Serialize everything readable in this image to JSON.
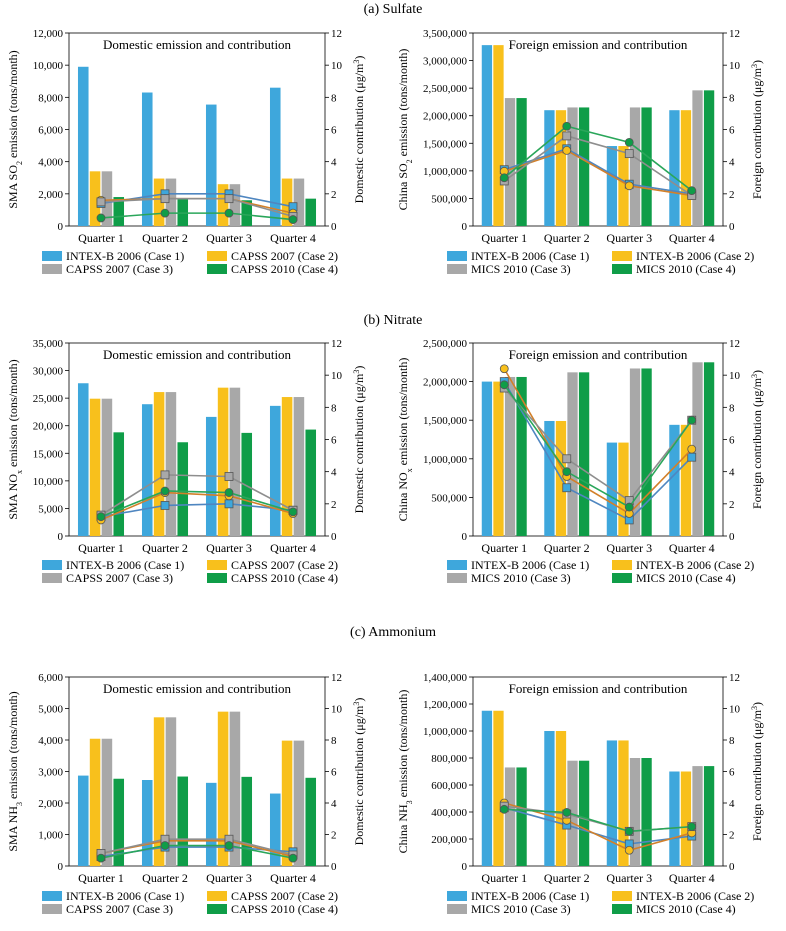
{
  "colors": {
    "case1": "#3ea7dc",
    "case2": "#f8c01c",
    "case3": "#a8a8a8",
    "case4": "#0f9d48"
  },
  "chart_data": [
    {
      "type": "bar+line",
      "section_title": "(a) Sulfate",
      "title": "Domestic emission and contribution",
      "ylabel": "SMA SO₂ emission (tons/month)",
      "y2label": "Domestic contribution (μg/m³)",
      "ylim": [
        0,
        12000
      ],
      "y2lim": [
        0,
        12
      ],
      "ytick_labels": [
        "0",
        "2,000",
        "4,000",
        "6,000",
        "8,000",
        "10,000",
        "12,000"
      ],
      "y2tick_labels": [
        "0",
        "2",
        "4",
        "6",
        "8",
        "10",
        "12"
      ],
      "categories": [
        "Quarter 1",
        "Quarter 2",
        "Quarter 3",
        "Quarter 4"
      ],
      "series": [
        {
          "name": "INTEX-B 2006 (Case 1)",
          "values": [
            9900,
            8300,
            7550,
            8600
          ],
          "contribution": [
            1.4,
            2.0,
            2.0,
            1.2
          ]
        },
        {
          "name": "CAPSS 2007 (Case 2)",
          "values": [
            3400,
            2950,
            2600,
            2950
          ],
          "contribution": [
            1.6,
            1.7,
            1.7,
            0.8
          ]
        },
        {
          "name": "CAPSS 2007 (Case 3)",
          "values": [
            3400,
            2950,
            2600,
            2950
          ],
          "contribution": [
            1.5,
            1.7,
            1.7,
            0.6
          ]
        },
        {
          "name": "CAPSS 2010 (Case 4)",
          "values": [
            1800,
            1650,
            1600,
            1700
          ],
          "contribution": [
            0.5,
            0.8,
            0.8,
            0.4
          ]
        }
      ]
    },
    {
      "type": "bar+line",
      "section_title": "",
      "title": "Foreign emission and contribution",
      "ylabel": "China SO₂ emission (tons/month)",
      "y2label": "Foreign contribution (μg/m³)",
      "ylim": [
        0,
        3500000
      ],
      "y2lim": [
        0,
        12
      ],
      "ytick_labels": [
        "0",
        "500,000",
        "1,000,000",
        "1,500,000",
        "2,000,000",
        "2,500,000",
        "3,000,000",
        "3,500,000"
      ],
      "y2tick_labels": [
        "0",
        "2",
        "4",
        "6",
        "8",
        "10",
        "12"
      ],
      "categories": [
        "Quarter 1",
        "Quarter 2",
        "Quarter 3",
        "Quarter 4"
      ],
      "series": [
        {
          "name": "INTEX-B 2006 (Case 1)",
          "values": [
            3280000,
            2100000,
            1450000,
            2100000
          ],
          "contribution": [
            3.5,
            4.8,
            2.6,
            2.0
          ]
        },
        {
          "name": "INTEX-B 2006 (Case 2)",
          "values": [
            3280000,
            2100000,
            1450000,
            2100000
          ],
          "contribution": [
            3.4,
            4.7,
            2.5,
            1.9
          ]
        },
        {
          "name": "MICS 2010 (Case 3)",
          "values": [
            2320000,
            2150000,
            2150000,
            2460000
          ],
          "contribution": [
            2.8,
            5.6,
            4.5,
            1.9
          ]
        },
        {
          "name": "MICS 2010 (Case 4)",
          "values": [
            2320000,
            2150000,
            2150000,
            2460000
          ],
          "contribution": [
            3.0,
            6.2,
            5.2,
            2.2
          ]
        }
      ]
    },
    {
      "type": "bar+line",
      "section_title": "(b) Nitrate",
      "title": "Domestic emission and contribution",
      "ylabel": "SMA NOₓ emission (tons/month)",
      "y2label": "Domestic contribution (μg/m³)",
      "ylim": [
        0,
        35000
      ],
      "y2lim": [
        0,
        12
      ],
      "ytick_labels": [
        "0",
        "5,000",
        "10,000",
        "15,000",
        "20,000",
        "25,000",
        "30,000",
        "35,000"
      ],
      "y2tick_labels": [
        "0",
        "2",
        "4",
        "6",
        "8",
        "10",
        "12"
      ],
      "categories": [
        "Quarter 1",
        "Quarter 2",
        "Quarter 3",
        "Quarter 4"
      ],
      "series": [
        {
          "name": "INTEX-B 2006 (Case 1)",
          "values": [
            27700,
            23900,
            21600,
            23600
          ],
          "contribution": [
            1.2,
            1.9,
            2.0,
            1.6
          ]
        },
        {
          "name": "CAPSS 2007 (Case 2)",
          "values": [
            24900,
            26100,
            26900,
            25200
          ],
          "contribution": [
            1.0,
            2.7,
            2.5,
            1.4
          ]
        },
        {
          "name": "CAPSS 2007 (Case 3)",
          "values": [
            24900,
            26100,
            26900,
            25200
          ],
          "contribution": [
            1.3,
            3.8,
            3.7,
            1.6
          ]
        },
        {
          "name": "CAPSS 2010 (Case 4)",
          "values": [
            18800,
            17000,
            18700,
            19300
          ],
          "contribution": [
            1.2,
            2.8,
            2.7,
            1.5
          ]
        }
      ]
    },
    {
      "type": "bar+line",
      "section_title": "",
      "title": "Foreign emission and contribution",
      "ylabel": "China NOₓ emission (tons/month)",
      "y2label": "Foreign contribution (μg/m³)",
      "ylim": [
        0,
        2500000
      ],
      "y2lim": [
        0,
        12
      ],
      "ytick_labels": [
        "0",
        "500,000",
        "1,000,000",
        "1,500,000",
        "2,000,000",
        "2,500,000"
      ],
      "y2tick_labels": [
        "0",
        "2",
        "4",
        "6",
        "8",
        "10",
        "12"
      ],
      "categories": [
        "Quarter 1",
        "Quarter 2",
        "Quarter 3",
        "Quarter 4"
      ],
      "series": [
        {
          "name": "INTEX-B 2006 (Case 1)",
          "values": [
            2000000,
            1490000,
            1210000,
            1440000
          ],
          "contribution": [
            9.6,
            3.0,
            1.0,
            4.9
          ]
        },
        {
          "name": "INTEX-B 2006 (Case 2)",
          "values": [
            2000000,
            1490000,
            1210000,
            1440000
          ],
          "contribution": [
            10.4,
            3.7,
            1.4,
            5.4
          ]
        },
        {
          "name": "MICS 2010 (Case 3)",
          "values": [
            2060000,
            2120000,
            2170000,
            2250000
          ],
          "contribution": [
            9.2,
            4.8,
            2.2,
            7.2
          ]
        },
        {
          "name": "MICS 2010 (Case 4)",
          "values": [
            2060000,
            2120000,
            2170000,
            2250000
          ],
          "contribution": [
            9.4,
            4.0,
            1.8,
            7.2
          ]
        }
      ]
    },
    {
      "type": "bar+line",
      "section_title": "(c) Ammonium",
      "title": "Domestic emission and contribution",
      "ylabel": "SMA NH₃ emission (tons/month)",
      "y2label": "Domestic contribution (μg/m³)",
      "ylim": [
        0,
        6000
      ],
      "y2lim": [
        0,
        12
      ],
      "ytick_labels": [
        "0",
        "1,000",
        "2,000",
        "3,000",
        "4,000",
        "5,000",
        "6,000"
      ],
      "y2tick_labels": [
        "0",
        "2",
        "4",
        "6",
        "8",
        "10",
        "12"
      ],
      "categories": [
        "Quarter 1",
        "Quarter 2",
        "Quarter 3",
        "Quarter 4"
      ],
      "series": [
        {
          "name": "INTEX-B 2006 (Case 1)",
          "values": [
            2870,
            2730,
            2640,
            2300
          ],
          "contribution": [
            0.6,
            1.2,
            1.2,
            0.9
          ]
        },
        {
          "name": "CAPSS 2007 (Case 2)",
          "values": [
            4040,
            4720,
            4900,
            3980
          ],
          "contribution": [
            0.8,
            1.6,
            1.6,
            0.6
          ]
        },
        {
          "name": "CAPSS 2007 (Case 3)",
          "values": [
            4040,
            4720,
            4900,
            3980
          ],
          "contribution": [
            0.8,
            1.7,
            1.7,
            0.7
          ]
        },
        {
          "name": "CAPSS 2010 (Case 4)",
          "values": [
            2770,
            2840,
            2830,
            2800
          ],
          "contribution": [
            0.5,
            1.3,
            1.3,
            0.5
          ]
        }
      ]
    },
    {
      "type": "bar+line",
      "section_title": "",
      "title": "Foreign emission and contribution",
      "ylabel": "China NH₃ emission (tons/month)",
      "y2label": "Foreign contribution (μg/m³)",
      "ylim": [
        0,
        1400000
      ],
      "y2lim": [
        0,
        12
      ],
      "ytick_labels": [
        "0",
        "200,000",
        "400,000",
        "600,000",
        "800,000",
        "1,000,000",
        "1,200,000",
        "1,400,000"
      ],
      "y2tick_labels": [
        "0",
        "2",
        "4",
        "6",
        "8",
        "10",
        "12"
      ],
      "categories": [
        "Quarter 1",
        "Quarter 2",
        "Quarter 3",
        "Quarter 4"
      ],
      "series": [
        {
          "name": "INTEX-B 2006 (Case 1)",
          "values": [
            1150000,
            1000000,
            930000,
            700000
          ],
          "contribution": [
            3.7,
            2.6,
            1.4,
            1.9
          ]
        },
        {
          "name": "INTEX-B 2006 (Case 2)",
          "values": [
            1150000,
            1000000,
            930000,
            700000
          ],
          "contribution": [
            4.0,
            2.9,
            1.0,
            2.1
          ]
        },
        {
          "name": "MICS 2010 (Case 3)",
          "values": [
            730000,
            780000,
            800000,
            740000
          ],
          "contribution": [
            3.8,
            3.3,
            2.2,
            2.5
          ]
        },
        {
          "name": "MICS 2010 (Case 4)",
          "values": [
            730000,
            780000,
            800000,
            740000
          ],
          "contribution": [
            3.6,
            3.4,
            2.2,
            2.5
          ]
        }
      ]
    }
  ]
}
